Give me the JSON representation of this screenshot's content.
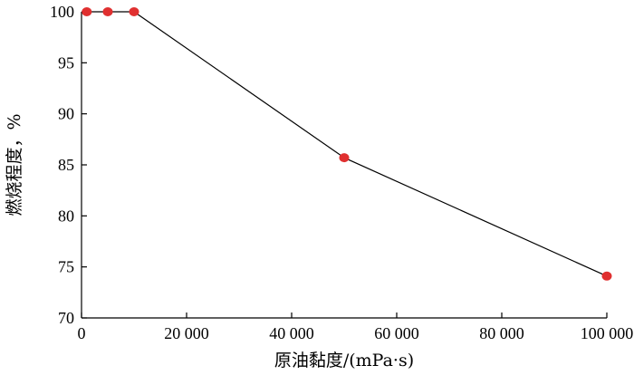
{
  "chart_data": {
    "type": "line",
    "xlabel": "原油黏度/(mPa·s)",
    "ylabel": "燃烧程度，%",
    "xlim": [
      0,
      100000
    ],
    "ylim": [
      70,
      100
    ],
    "x_ticks": [
      0,
      20000,
      40000,
      60000,
      80000,
      100000
    ],
    "x_tick_labels": [
      "0",
      "20 000",
      "40 000",
      "60 000",
      "80 000",
      "100 000"
    ],
    "y_ticks": [
      70,
      75,
      80,
      85,
      90,
      95,
      100
    ],
    "y_tick_labels": [
      "70",
      "75",
      "80",
      "85",
      "90",
      "95",
      "100"
    ],
    "grid": false,
    "series": [
      {
        "x": [
          1000,
          5000,
          10000,
          50000,
          100000
        ],
        "y": [
          100,
          100,
          100,
          85.7,
          74.1
        ],
        "marker_color": "#e03030",
        "line_color": "#000000"
      }
    ]
  }
}
